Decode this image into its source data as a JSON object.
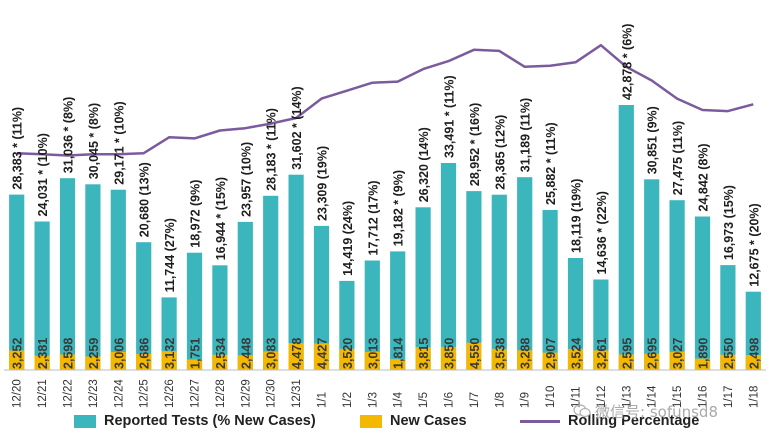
{
  "chart_data": {
    "type": "bar",
    "categories": [
      "12/20",
      "12/21",
      "12/22",
      "12/23",
      "12/24",
      "12/25",
      "12/26",
      "12/27",
      "12/28",
      "12/29",
      "12/30",
      "12/31",
      "1/1",
      "1/2",
      "1/3",
      "1/4",
      "1/5",
      "1/6",
      "1/7",
      "1/8",
      "1/9",
      "1/10",
      "1/11",
      "1/12",
      "1/13",
      "1/14",
      "1/15",
      "1/16",
      "1/17",
      "1/18"
    ],
    "series": [
      {
        "name": "Reported Tests (% New Cases)",
        "color": "#3bb6bd",
        "values": [
          28383,
          24031,
          31036,
          30045,
          29171,
          20680,
          11744,
          18972,
          16944,
          23957,
          28183,
          31602,
          23309,
          14419,
          17712,
          19182,
          26320,
          33491,
          28952,
          28365,
          31189,
          25882,
          18119,
          14636,
          42878,
          30851,
          27475,
          24842,
          16973,
          12675
        ],
        "labels": [
          "28,383 * (11%)",
          "24,031 * (10%)",
          "31,036 * (8%)",
          "30,045 * (8%)",
          "29,171 * (10%)",
          "20,680 (13%)",
          "11,744 (27%)",
          "18,972 (9%)",
          "16,944 * (15%)",
          "23,957 (10%)",
          "28,183 * (11%)",
          "31,602 * (14%)",
          "23,309 (19%)",
          "14,419 (24%)",
          "17,712 (17%)",
          "19,182 * (9%)",
          "26,320 (14%)",
          "33,491 * (11%)",
          "28,952 * (16%)",
          "28,365 (12%)",
          "31,189 (11%)",
          "25,882 * (11%)",
          "18,119 (19%)",
          "14,636 * (22%)",
          "42,878 * (6%)",
          "30,851 (9%)",
          "27,475 (11%)",
          "24,842 (8%)",
          "16,973 (15%)",
          "12,675 * (20%)"
        ]
      },
      {
        "name": "New Cases",
        "color": "#f5b800",
        "values": [
          3252,
          2381,
          2598,
          2259,
          3006,
          2686,
          3132,
          1751,
          2534,
          2448,
          3083,
          4478,
          4427,
          3520,
          3013,
          1814,
          3815,
          3850,
          4550,
          3538,
          3288,
          2907,
          3524,
          3261,
          2595,
          2695,
          3027,
          1890,
          2550,
          2498
        ],
        "labels": [
          "3,252",
          "2,381",
          "2,598",
          "2,259",
          "3,006",
          "2,686",
          "3,132",
          "1,751",
          "2,534",
          "2,448",
          "3,083",
          "4,478",
          "4,427",
          "3,520",
          "3,013",
          "1,814",
          "3,815",
          "3,850",
          "4,550",
          "3,538",
          "3,288",
          "2,907",
          "3,524",
          "3,261",
          "2,595",
          "2,695",
          "3,027",
          "1,890",
          "2,550",
          "2,498"
        ]
      },
      {
        "name": "Rolling Percentage",
        "color": "#7b5a9e",
        "values": [
          10.6,
          10.5,
          10.4,
          10.5,
          10.5,
          10.6,
          12.0,
          11.9,
          12.6,
          12.8,
          13.2,
          13.7,
          15.4,
          16.1,
          16.8,
          16.9,
          18.0,
          18.7,
          19.7,
          19.6,
          18.2,
          18.3,
          18.6,
          20.1,
          18.2,
          17.0,
          15.4,
          14.4,
          14.3,
          14.9
        ]
      }
    ],
    "ylim_tests": [
      0,
      48000
    ],
    "title": "",
    "xlabel": "",
    "ylabel": "",
    "grid": false,
    "legend_position": "bottom"
  },
  "legend": {
    "tests": "Reported Tests (% New Cases)",
    "cases": "New Cases",
    "rolling": "Rolling Percentage"
  },
  "watermark": {
    "text": "微信号: sofunsd8",
    "icon": "wechat-icon"
  }
}
